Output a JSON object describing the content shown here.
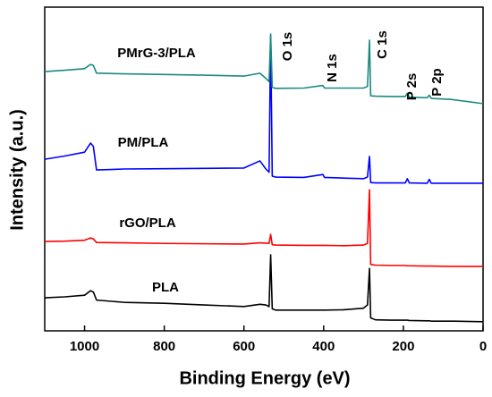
{
  "chart_data": {
    "type": "line",
    "xlabel": "Binding Energy (eV)",
    "ylabel": "Intensity (a.u.)",
    "xlim": [
      1100,
      0
    ],
    "xticks": [
      1000,
      800,
      600,
      400,
      200,
      0
    ],
    "ylim": [
      0,
      100
    ],
    "x": [
      1100,
      1050,
      1000,
      985,
      978,
      970,
      900,
      800,
      700,
      600,
      560,
      545,
      537,
      533,
      529,
      520,
      450,
      402,
      398,
      350,
      300,
      290,
      285,
      282,
      270,
      230,
      195,
      190,
      185,
      140,
      135,
      130,
      80,
      0
    ],
    "series": [
      {
        "name": "PLA",
        "color": "#000000",
        "values": [
          10.2,
          10.5,
          11,
          12.4,
          12,
          9.5,
          8.8,
          8.5,
          8,
          7.5,
          8.2,
          8,
          7.5,
          23.5,
          6.8,
          6.4,
          6.4,
          6.4,
          6.4,
          6.5,
          7,
          8,
          19.3,
          4,
          3.4,
          3.3,
          3.3,
          3.3,
          3.2,
          3.1,
          3.1,
          3.0,
          3.0,
          2.8
        ]
      },
      {
        "name": "rGO/PLA",
        "color": "#ff0000",
        "values": [
          27.6,
          27.7,
          28,
          28.7,
          28.4,
          27.3,
          27.2,
          27,
          26.9,
          26.8,
          27.2,
          27.1,
          27,
          29.8,
          26.6,
          26.5,
          26.4,
          26.4,
          26.4,
          26.3,
          26.5,
          27,
          43.6,
          20.5,
          20.3,
          20.2,
          20.2,
          20.1,
          20.1,
          20,
          20,
          20,
          19.9,
          19.9
        ]
      },
      {
        "name": "PM/PLA",
        "color": "#0000ff",
        "values": [
          53,
          54,
          55.2,
          58,
          57,
          49.7,
          50,
          50.1,
          50.2,
          50.3,
          52.5,
          50,
          49,
          91.2,
          47.8,
          47.5,
          47.4,
          48.3,
          47.4,
          47.2,
          47,
          47.5,
          53.9,
          45.8,
          45.7,
          45.7,
          45.7,
          47,
          45.7,
          45.6,
          46.8,
          45.6,
          45.6,
          45.6
        ]
      },
      {
        "name": "PMrG-3/PLA",
        "color": "#1a8a80",
        "values": [
          80.1,
          80.5,
          81,
          82.3,
          82,
          79.6,
          79.4,
          79.2,
          79,
          78.7,
          79.6,
          78,
          77,
          91.7,
          75.2,
          74.9,
          75,
          75.8,
          75,
          75,
          75,
          75.5,
          89.8,
          72.6,
          72.5,
          72.4,
          72.4,
          73.4,
          72.2,
          72,
          72.8,
          71.8,
          71.5,
          70.2
        ]
      }
    ],
    "annotations": [
      "O 1s",
      "N 1s",
      "C 1s",
      "P 2s",
      "P 2p"
    ]
  }
}
